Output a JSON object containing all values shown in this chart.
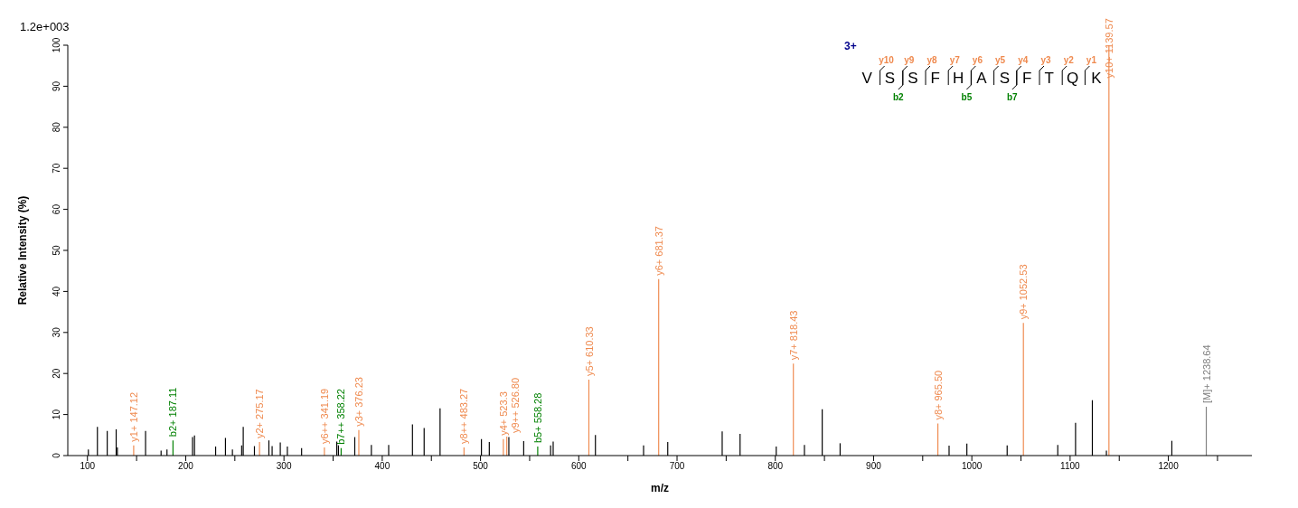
{
  "chart_data": {
    "type": "bar",
    "xlabel": "m/z",
    "ylabel": "Relative Intensity (%)",
    "annotations": [
      "1.2e+003",
      "3+",
      "VSSFHASFTQK",
      "y10",
      "y9",
      "y8",
      "y7",
      "y6",
      "y5",
      "y4",
      "y3",
      "y2",
      "y1",
      "b2",
      "b5",
      "b7",
      {
        "text": "y1+ 147.12",
        "x": 147.12,
        "y": 2.5
      },
      {
        "text": "b2+ 187.11",
        "x": 187.11,
        "y": 3.7
      },
      {
        "text": "y2+ 275.17",
        "x": 275.17,
        "y": 3.3
      },
      {
        "text": "y6++ 341.19",
        "x": 341.19,
        "y": 2.0
      },
      {
        "text": "b7++ 358.22",
        "x": 358.22,
        "y": 1.8
      },
      {
        "text": "y3+ 376.23",
        "x": 376.23,
        "y": 6.2
      },
      {
        "text": "y8++ 483.27",
        "x": 483.27,
        "y": 2.0
      },
      {
        "text": "y4+ 523.3",
        "x": 523.3,
        "y": 4.0
      },
      {
        "text": "y9++ 526.80",
        "x": 526.8,
        "y": 4.6
      },
      {
        "text": "b5+ 558.28",
        "x": 558.28,
        "y": 2.2
      },
      {
        "text": "y5+ 610.33",
        "x": 610.33,
        "y": 18.5
      },
      {
        "text": "y6+ 681.37",
        "x": 681.37,
        "y": 43
      },
      {
        "text": "y7+ 818.43",
        "x": 818.43,
        "y": 22.4
      },
      {
        "text": "y8+ 965.50",
        "x": 965.5,
        "y": 7.8
      },
      {
        "text": "y9+ 1052.53",
        "x": 1052.53,
        "y": 32.3
      },
      {
        "text": "y10+ 1139.57",
        "x": 1139.57,
        "y": 100
      },
      {
        "text": "[M]+ 1238.64",
        "x": 1238.64,
        "y": 11.9
      }
    ],
    "xlim": [
      80,
      1285
    ],
    "xticks": [
      100,
      {
        "value": 150,
        "label": null
      },
      200,
      {
        "value": 250,
        "label": null
      },
      300,
      {
        "value": 350,
        "label": null
      },
      400,
      {
        "value": 450,
        "label": null
      },
      500,
      {
        "value": 550,
        "label": null
      },
      600,
      {
        "value": 650,
        "label": null
      },
      700,
      {
        "value": 750,
        "label": null
      },
      800,
      {
        "value": 850,
        "label": null
      },
      900,
      {
        "value": 950,
        "label": null
      },
      1000,
      {
        "value": 1050,
        "label": null
      },
      1100,
      {
        "value": 1150,
        "label": null
      },
      1200,
      {
        "value": 1250,
        "label": null
      }
    ],
    "ylim": [
      0,
      100
    ],
    "yticks": [
      0,
      10,
      20,
      30,
      40,
      50,
      60,
      70,
      80,
      90,
      100
    ],
    "series": [
      {
        "color": "#000000",
        "x": [
          101,
          110.2,
          120.2,
          129.3,
          130.5,
          159.2,
          175,
          181,
          207,
          209,
          230.5,
          240.5,
          247.6,
          257,
          258.6,
          270,
          284.7,
          288,
          296.3,
          303.5,
          318,
          353.8,
          355.5,
          372.1,
          389,
          406.6,
          430.8,
          442.7,
          458.9,
          501,
          509,
          528.9,
          544,
          571.4,
          574,
          617,
          666,
          690.6,
          746,
          764.2,
          801,
          829.7,
          847.8,
          866,
          976.9,
          995,
          1036,
          1087.5,
          1105.6,
          1122.7,
          1137,
          1203.6
        ],
        "values": [
          1.5,
          7.0,
          6.0,
          6.4,
          2.0,
          6.0,
          1.2,
          1.5,
          4.5,
          4.9,
          2.2,
          4.3,
          1.5,
          2.5,
          7.0,
          2.3,
          3.7,
          2.3,
          3.2,
          2.2,
          1.8,
          3.4,
          2.5,
          4.5,
          2.6,
          2.6,
          7.6,
          6.7,
          11.5,
          4.0,
          3.3,
          4.5,
          3.5,
          2.5,
          3.4,
          5.0,
          2.5,
          3.3,
          5.9,
          5.3,
          2.2,
          2.6,
          11.3,
          3.0,
          2.4,
          2.9,
          2.5,
          2.6,
          8.0,
          13.5,
          1.2,
          3.6
        ]
      },
      {
        "color": "#ef8a4f",
        "x": [
          147.12,
          275.17,
          341.19,
          376.23,
          483.27,
          523.3,
          526.8,
          610.33,
          681.37,
          818.43,
          965.5,
          1052.53,
          1139.57
        ],
        "values": [
          2.5,
          3.3,
          2.0,
          6.2,
          2.0,
          4.0,
          4.6,
          18.5,
          43,
          22.4,
          7.8,
          32.3,
          100
        ]
      },
      {
        "color": "#008000",
        "x": [
          187.11,
          358.22,
          558.28
        ],
        "values": [
          3.7,
          1.8,
          2.2
        ]
      },
      {
        "color": "#808080",
        "x": [
          1238.64
        ],
        "values": [
          11.9
        ]
      }
    ]
  }
}
